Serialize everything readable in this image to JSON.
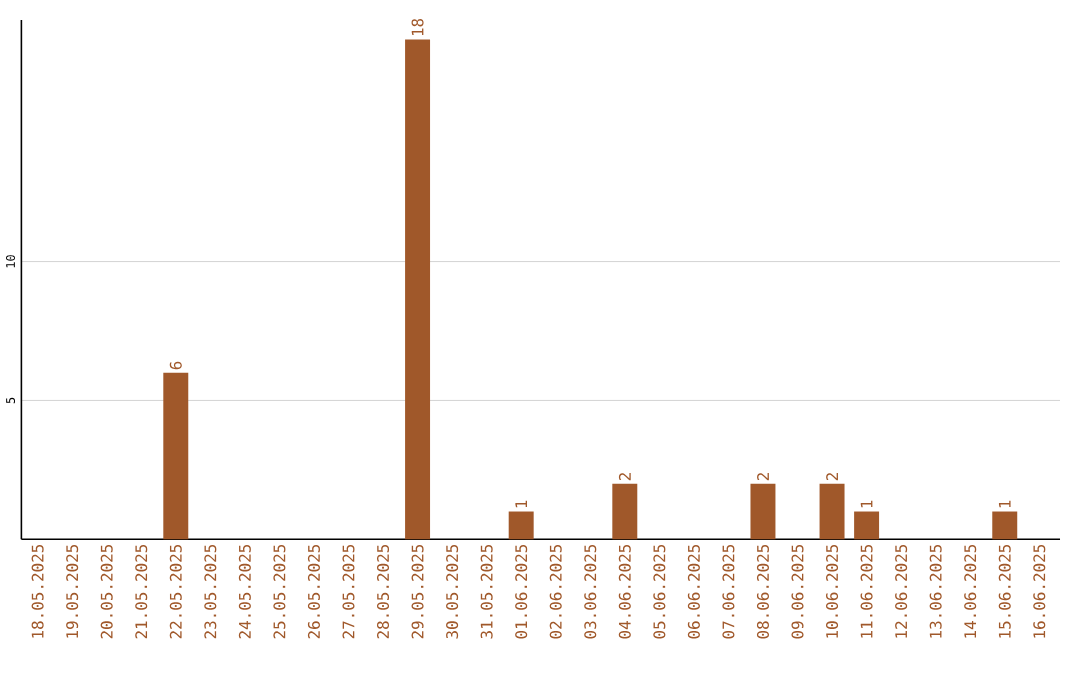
{
  "chart_data": {
    "type": "bar",
    "categories": [
      "18.05.2025",
      "19.05.2025",
      "20.05.2025",
      "21.05.2025",
      "22.05.2025",
      "23.05.2025",
      "24.05.2025",
      "25.05.2025",
      "26.05.2025",
      "27.05.2025",
      "28.05.2025",
      "29.05.2025",
      "30.05.2025",
      "31.05.2025",
      "01.06.2025",
      "02.06.2025",
      "03.06.2025",
      "04.06.2025",
      "05.06.2025",
      "06.06.2025",
      "07.06.2025",
      "08.06.2025",
      "09.06.2025",
      "10.06.2025",
      "11.06.2025",
      "12.06.2025",
      "13.06.2025",
      "14.06.2025",
      "15.06.2025",
      "16.06.2025"
    ],
    "values": [
      0,
      0,
      0,
      0,
      6,
      0,
      0,
      0,
      0,
      0,
      0,
      18,
      0,
      0,
      1,
      0,
      0,
      2,
      0,
      0,
      0,
      2,
      0,
      2,
      1,
      0,
      0,
      0,
      1,
      0
    ],
    "value_labels": [
      null,
      null,
      null,
      null,
      "6",
      null,
      null,
      null,
      null,
      null,
      null,
      "18",
      null,
      null,
      "1",
      null,
      null,
      "2",
      null,
      null,
      null,
      "2",
      null,
      "2",
      "1",
      null,
      null,
      null,
      "1",
      null
    ],
    "color": "#a0582a",
    "ylim": [
      0,
      18.7
    ],
    "yticks": [
      5,
      10
    ],
    "grid": "y"
  }
}
